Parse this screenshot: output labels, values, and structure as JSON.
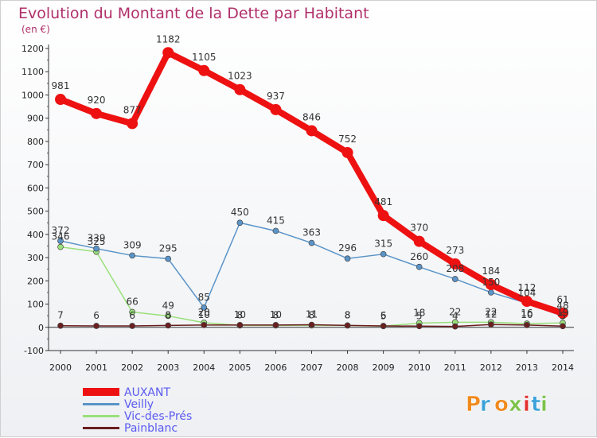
{
  "chart_data": {
    "type": "line",
    "title": "Evolution du Montant de la Dette par Habitant",
    "subtitle": "(en €)",
    "x": [
      "2000",
      "2001",
      "2002",
      "2003",
      "2004",
      "2005",
      "2006",
      "2007",
      "2008",
      "2009",
      "2010",
      "2011",
      "2012",
      "2013",
      "2014"
    ],
    "ylim": [
      -100,
      1200
    ],
    "yticks": [
      -100,
      0,
      100,
      200,
      300,
      400,
      500,
      600,
      700,
      800,
      900,
      1000,
      1100,
      1200
    ],
    "grid": false,
    "legend_position": "bottom-left",
    "series": [
      {
        "name": "Vic-des-Prés",
        "color": "#99e07a",
        "values": [
          346,
          325,
          66,
          49,
          20,
          8,
          8,
          8,
          8,
          5,
          18,
          22,
          22,
          16,
          19
        ]
      },
      {
        "name": "Veilly",
        "color": "#5a94c8",
        "values": [
          372,
          339,
          309,
          295,
          85,
          450,
          415,
          363,
          296,
          315,
          260,
          208,
          150,
          104,
          48
        ]
      },
      {
        "name": "Painblanc",
        "color": "#6b1f1f",
        "values": [
          7,
          6,
          6,
          8,
          10,
          10,
          10,
          11,
          8,
          6,
          5,
          4,
          12,
          10,
          5
        ]
      },
      {
        "name": "AUXANT",
        "color": "#ee1111",
        "values": [
          981,
          920,
          877,
          1182,
          1105,
          1023,
          937,
          846,
          752,
          481,
          370,
          273,
          184,
          112,
          61
        ]
      }
    ],
    "legend": [
      {
        "name": "AUXANT",
        "color": "#ee1111"
      },
      {
        "name": "Veilly",
        "color": "#5a94c8"
      },
      {
        "name": "Vic-des-Prés",
        "color": "#99e07a"
      },
      {
        "name": "Painblanc",
        "color": "#6b1f1f"
      }
    ]
  },
  "branding": {
    "logo_text": "Proxiti",
    "logo_colors": [
      "#f08a1c",
      "#3aa2d8",
      "#f08a1c",
      "#7cc24a",
      "#e23030",
      "#3aa2d8",
      "#7cc24a"
    ]
  },
  "colors": {
    "title": "#b0306a",
    "legend_text": "#5a5af0"
  }
}
